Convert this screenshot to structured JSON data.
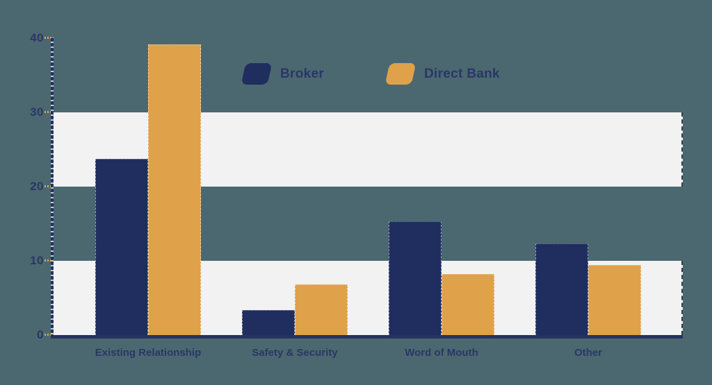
{
  "colors": {
    "background": "#4B6871",
    "band": "#F2F2F3",
    "navy_bar": "#1F2E5F",
    "orange_bar": "#E0A14B",
    "text": "#2B3665",
    "axis": "#26335F",
    "axis_dash": "#C8D1D3",
    "tick_mark": "#E0A14B"
  },
  "chart_data": {
    "type": "bar",
    "title": "",
    "categories": [
      "Existing Relationship",
      "Safety & Security",
      "Word of Mouth",
      "Other"
    ],
    "series": [
      {
        "name": "Broker",
        "color": "#1F2E5F",
        "values": [
          23.7,
          3.4,
          15.3,
          12.3
        ]
      },
      {
        "name": "Direct Bank",
        "color": "#E0A14B",
        "values": [
          39.2,
          6.8,
          8.2,
          9.4
        ]
      }
    ],
    "xlabel": "",
    "ylabel": "",
    "ylim": [
      0,
      40
    ],
    "yticks": [
      0,
      10,
      20,
      30,
      40
    ],
    "shaded_bands": [
      [
        0,
        10
      ],
      [
        20,
        30
      ]
    ],
    "grid": false,
    "legend_position": "top-center",
    "legend_items": [
      "Broker",
      "Direct Bank"
    ]
  }
}
